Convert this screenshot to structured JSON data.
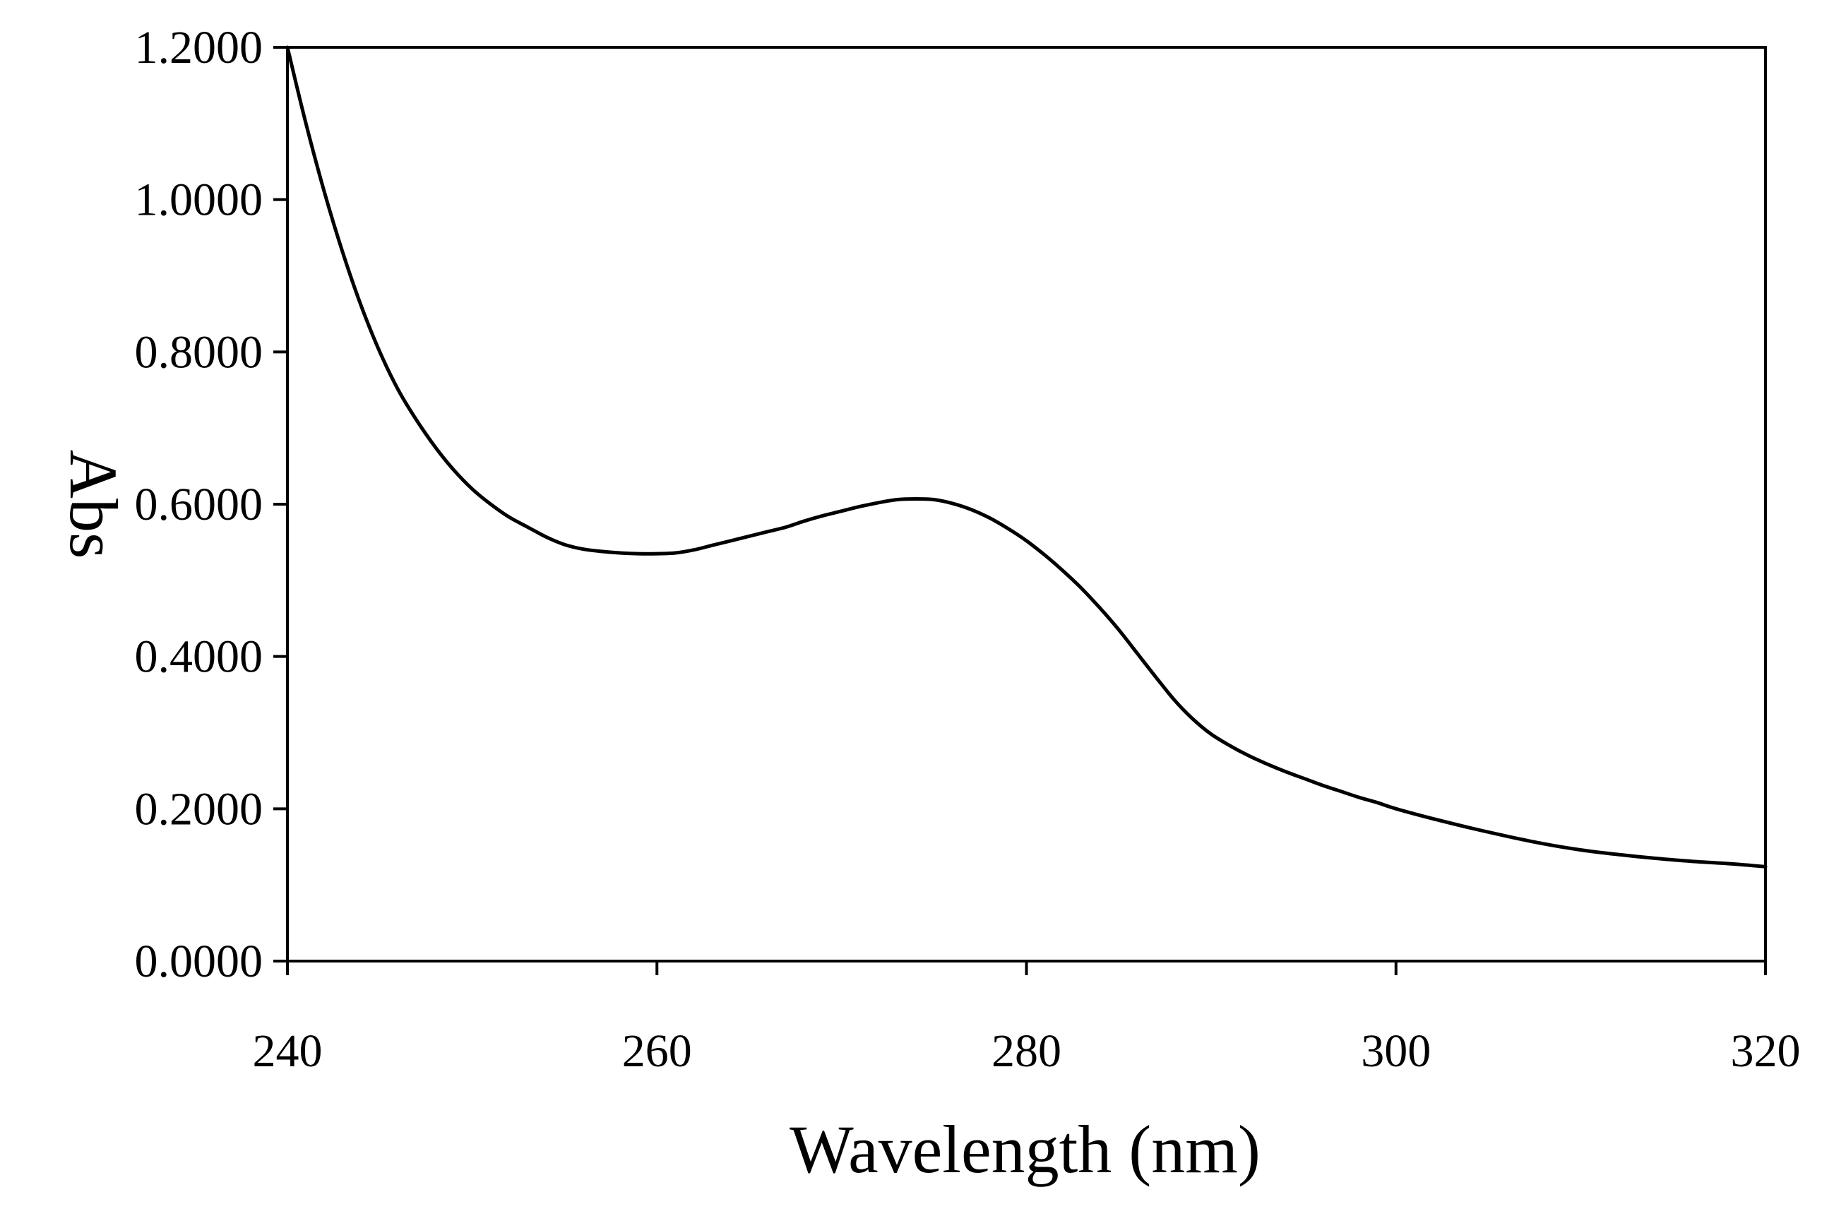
{
  "chart_data": {
    "type": "line",
    "title": "",
    "xlabel": "Wavelength (nm)",
    "ylabel": "Abs",
    "xlim": [
      240,
      320
    ],
    "ylim": [
      0,
      1.2
    ],
    "grid": false,
    "legend": "none",
    "x_ticks": [
      240,
      260,
      280,
      300,
      320
    ],
    "y_ticks": [
      0,
      0.2,
      0.4,
      0.6,
      0.8,
      1.0,
      1.2
    ],
    "x_tick_labels": [
      "240",
      "260",
      "280",
      "300",
      "320"
    ],
    "y_tick_labels": [
      "0.0000",
      "0.2000",
      "0.4000",
      "0.6000",
      "0.8000",
      "1.0000",
      "1.2000"
    ],
    "series": [
      {
        "name": "Abs",
        "color": "#000000",
        "x": [
          240,
          241,
          242,
          243,
          244,
          245,
          246,
          247,
          248,
          249,
          250,
          251,
          252,
          253,
          254,
          255,
          256,
          257,
          258,
          259,
          260,
          261,
          262,
          263,
          264,
          265,
          266,
          267,
          268,
          269,
          270,
          271,
          272,
          273,
          274,
          275,
          276,
          277,
          278,
          279,
          280,
          281,
          282,
          283,
          284,
          285,
          286,
          287,
          288,
          289,
          290,
          291,
          292,
          293,
          294,
          295,
          296,
          297,
          298,
          299,
          300,
          302,
          304,
          306,
          308,
          310,
          312,
          314,
          316,
          318,
          320
        ],
        "y": [
          1.2,
          1.1,
          1.01,
          0.93,
          0.86,
          0.8,
          0.75,
          0.71,
          0.675,
          0.645,
          0.62,
          0.6,
          0.583,
          0.57,
          0.557,
          0.547,
          0.541,
          0.538,
          0.536,
          0.535,
          0.535,
          0.536,
          0.54,
          0.546,
          0.552,
          0.558,
          0.564,
          0.57,
          0.578,
          0.585,
          0.591,
          0.597,
          0.602,
          0.606,
          0.607,
          0.606,
          0.601,
          0.593,
          0.582,
          0.568,
          0.552,
          0.533,
          0.512,
          0.489,
          0.463,
          0.435,
          0.404,
          0.373,
          0.343,
          0.318,
          0.298,
          0.283,
          0.27,
          0.259,
          0.249,
          0.24,
          0.231,
          0.223,
          0.215,
          0.208,
          0.2,
          0.187,
          0.175,
          0.164,
          0.154,
          0.146,
          0.14,
          0.135,
          0.131,
          0.128,
          0.124
        ]
      }
    ]
  }
}
